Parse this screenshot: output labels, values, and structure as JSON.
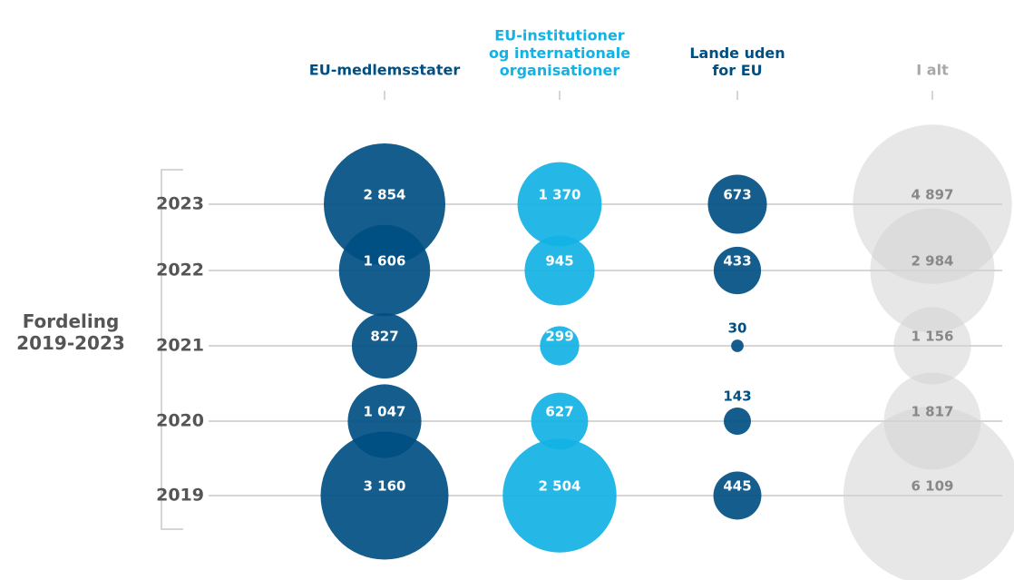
{
  "chart_data": {
    "type": "bubble",
    "title": "Fordeling\n2019-2023",
    "categories": [
      "2023",
      "2022",
      "2021",
      "2020",
      "2019"
    ],
    "series": [
      {
        "name": "EU-medlemsstater",
        "color": "#004f82",
        "values": [
          2854,
          1606,
          827,
          1047,
          3160
        ],
        "value_labels": [
          "2 854",
          "1 606",
          "827",
          "1 047",
          "3 160"
        ]
      },
      {
        "name": "EU-institutioner\nog internationale\norganisationer",
        "color": "#12b2e5",
        "values": [
          1370,
          945,
          299,
          627,
          2504
        ],
        "value_labels": [
          "1 370",
          "945",
          "299",
          "627",
          "2 504"
        ]
      },
      {
        "name": "Lande uden\nfor EU",
        "color": "#004f82",
        "values": [
          673,
          433,
          30,
          143,
          445
        ],
        "value_labels": [
          "673",
          "433",
          "30",
          "143",
          "445"
        ]
      },
      {
        "name": "I alt",
        "color": "#d3d3d3",
        "values": [
          4897,
          2984,
          1156,
          1817,
          6109
        ],
        "value_labels": [
          "4 897",
          "2 984",
          "1 156",
          "1 817",
          "6 109"
        ]
      }
    ]
  }
}
